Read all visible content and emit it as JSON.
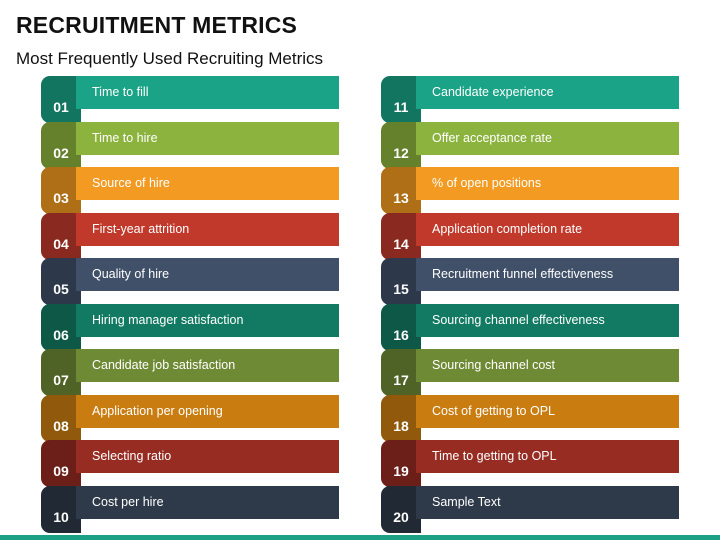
{
  "title": "RECRUITMENT METRICS",
  "subtitle": "Most Frequently Used Recruiting Metrics",
  "colors": [
    "#1aa386",
    "#8cb33e",
    "#f29a21",
    "#c0392b",
    "#3f5068",
    "#127a62",
    "#6f8a35",
    "#c97c10",
    "#962c22",
    "#2e3a4a"
  ],
  "left_items": [
    {
      "num": "01",
      "label": "Time to fill"
    },
    {
      "num": "02",
      "label": "Time to hire"
    },
    {
      "num": "03",
      "label": "Source of hire"
    },
    {
      "num": "04",
      "label": "First-year attrition"
    },
    {
      "num": "05",
      "label": "Quality of hire"
    },
    {
      "num": "06",
      "label": "Hiring manager satisfaction"
    },
    {
      "num": "07",
      "label": "Candidate job satisfaction"
    },
    {
      "num": "08",
      "label": "Application per opening"
    },
    {
      "num": "09",
      "label": "Selecting ratio"
    },
    {
      "num": "10",
      "label": "Cost per hire"
    }
  ],
  "right_items": [
    {
      "num": "11",
      "label": "Candidate experience"
    },
    {
      "num": "12",
      "label": "Offer acceptance rate"
    },
    {
      "num": "13",
      "label": "% of open positions"
    },
    {
      "num": "14",
      "label": "Application completion rate"
    },
    {
      "num": "15",
      "label": "Recruitment funnel effectiveness"
    },
    {
      "num": "16",
      "label": "Sourcing channel effectiveness"
    },
    {
      "num": "17",
      "label": "Sourcing channel cost"
    },
    {
      "num": "18",
      "label": "Cost of getting to OPL"
    },
    {
      "num": "19",
      "label": "Time to getting to OPL"
    },
    {
      "num": "20",
      "label": "Sample Text"
    }
  ]
}
